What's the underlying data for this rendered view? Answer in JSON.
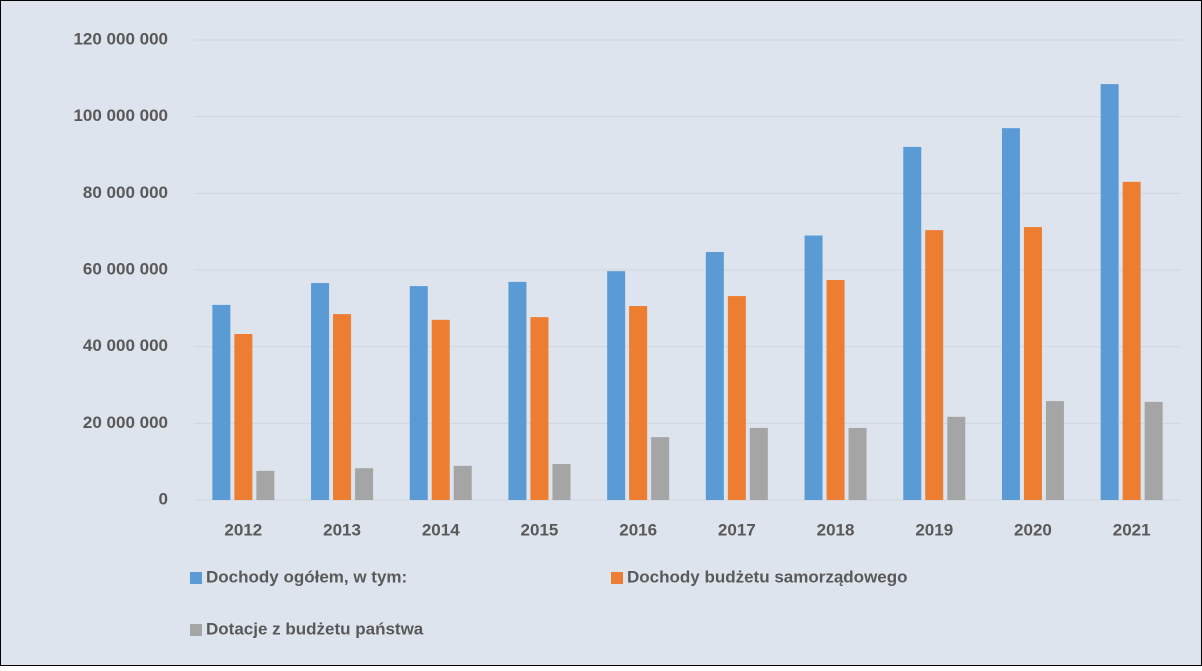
{
  "chart_data": {
    "type": "bar",
    "categories": [
      "2012",
      "2013",
      "2014",
      "2015",
      "2016",
      "2017",
      "2018",
      "2019",
      "2020",
      "2021"
    ],
    "series": [
      {
        "name": "Dochody ogółem, w tym:",
        "color": "#5b9bd5",
        "values": [
          50900000,
          56600000,
          55800000,
          56900000,
          59700000,
          64700000,
          69000000,
          92100000,
          97000000,
          108500000
        ]
      },
      {
        "name": "Dochody budżetu samorządowego",
        "color": "#ed7d31",
        "values": [
          43300000,
          48500000,
          47000000,
          47700000,
          50600000,
          53200000,
          57400000,
          70400000,
          71200000,
          83000000
        ]
      },
      {
        "name": "Dotacje z budżetu państwa",
        "color": "#a5a5a5",
        "values": [
          7600000,
          8300000,
          8900000,
          9400000,
          16400000,
          18800000,
          18800000,
          21700000,
          25800000,
          25600000
        ]
      }
    ],
    "ylim": [
      0,
      120000000
    ],
    "yticks": [
      0,
      {
        "value": 20000000,
        "label": "20 000 000"
      },
      {
        "value": 40000000,
        "label": "40 000 000"
      },
      {
        "value": 60000000,
        "label": "60 000 000"
      },
      {
        "value": 80000000,
        "label": "80 000 000"
      },
      {
        "value": 100000000,
        "label": "100 000 000"
      },
      {
        "value": 120000000,
        "label": "120 000 000"
      }
    ],
    "grid": true,
    "legend": "bottom"
  }
}
